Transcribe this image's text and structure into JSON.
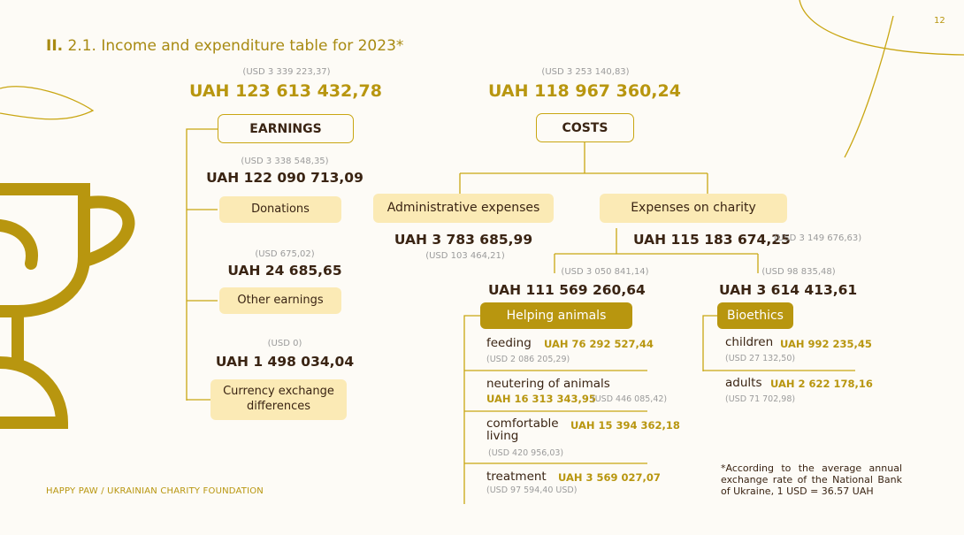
{
  "page_number": "12",
  "title": {
    "prefix": "II.",
    "text": "2.1. Income and expenditure table for 2023*"
  },
  "earnings": {
    "usd": "(USD 3 339 223,37)",
    "uah": "UAH 123 613 432,78",
    "label": "EARNINGS",
    "items": [
      {
        "usd": "(USD 3 338 548,35)",
        "uah": "UAH 122 090 713,09",
        "label": "Donations"
      },
      {
        "usd": "(USD 675,02)",
        "uah": "UAH 24 685,65",
        "label": "Other earnings"
      },
      {
        "usd": "(USD 0)",
        "uah": "UAH 1 498 034,04",
        "label_line1": "Currency exchange",
        "label_line2": "differences"
      }
    ]
  },
  "costs": {
    "usd": "(USD 3 253 140,83)",
    "uah": "UAH 118 967 360,24",
    "label": "COSTS",
    "administrative": {
      "label": "Administrative expenses",
      "uah": "UAH 3 783 685,99",
      "usd": "(USD 103 464,21)"
    },
    "charity": {
      "label": "Expenses on charity",
      "uah": "UAH 115 183 674,25",
      "usd": "(USD 3 149 676,63)"
    },
    "helping_animals": {
      "usd": "(USD 3 050 841,14)",
      "uah": "UAH 111 569 260,64",
      "label": "Helping animals",
      "items": [
        {
          "label": "feeding",
          "uah": "UAH 76 292 527,44",
          "usd": "(USD 2 086 205,29)"
        },
        {
          "label": "neutering of animals",
          "uah": "UAH 16 313 343,95",
          "usd": "(USD 446 085,42)"
        },
        {
          "label_line1": "comfortable",
          "label_line2": "living",
          "uah": "UAH 15 394 362,18",
          "usd": "(USD 420 956,03)"
        },
        {
          "label": "treatment",
          "uah": "UAH 3 569 027,07",
          "usd": "(USD 97 594,40 USD)"
        }
      ]
    },
    "bioethics": {
      "usd": "(USD 98 835,48)",
      "uah": "UAH 3 614 413,61",
      "label": "Bioethics",
      "items": [
        {
          "label": "children",
          "uah": "UAH 992 235,45",
          "usd": "(USD 27 132,50)"
        },
        {
          "label": "adults",
          "uah": "UAH 2 622 178,16",
          "usd": "(USD 71 702,98)"
        }
      ]
    }
  },
  "footnote": "*According to the average annual exchange rate of the National Bank of Ukraine, 1 USD = 36.57 UAH",
  "footer": "HAPPY PAW / UKRAINIAN CHARITY FOUNDATION",
  "colors": {
    "gold": "#b8960f",
    "light_gold": "#fbeab5",
    "brown": "#3a2413",
    "gray": "#9b9b9b",
    "background": "#fdfbf6"
  }
}
